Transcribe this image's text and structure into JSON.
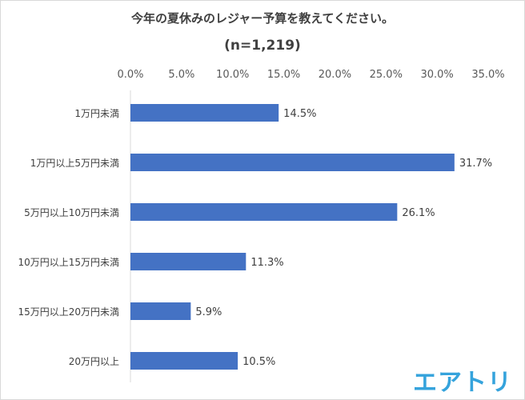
{
  "chart_data": {
    "type": "bar",
    "orientation": "horizontal",
    "title": "今年の夏休みのレジャー予算を教えてください。",
    "subtitle": "(n=1,219)",
    "categories": [
      "1万円未満",
      "1万円以上5万円未満",
      "5万円以上10万円未満",
      "10万円以上15万円未満",
      "15万円以上20万円未満",
      "20万円以上"
    ],
    "values": [
      14.5,
      31.7,
      26.1,
      11.3,
      5.9,
      10.5
    ],
    "value_labels": [
      "14.5%",
      "31.7%",
      "26.1%",
      "11.3%",
      "5.9%",
      "10.5%"
    ],
    "xlim": [
      0,
      35
    ],
    "x_ticks": [
      "0.0%",
      "5.0%",
      "10.0%",
      "15.0%",
      "20.0%",
      "25.0%",
      "30.0%",
      "35.0%"
    ],
    "x_axis_position": "top",
    "grid": false,
    "bar_color": "#4472c4"
  },
  "logo": {
    "text": "エアトリ",
    "color": "#35a3dc"
  }
}
